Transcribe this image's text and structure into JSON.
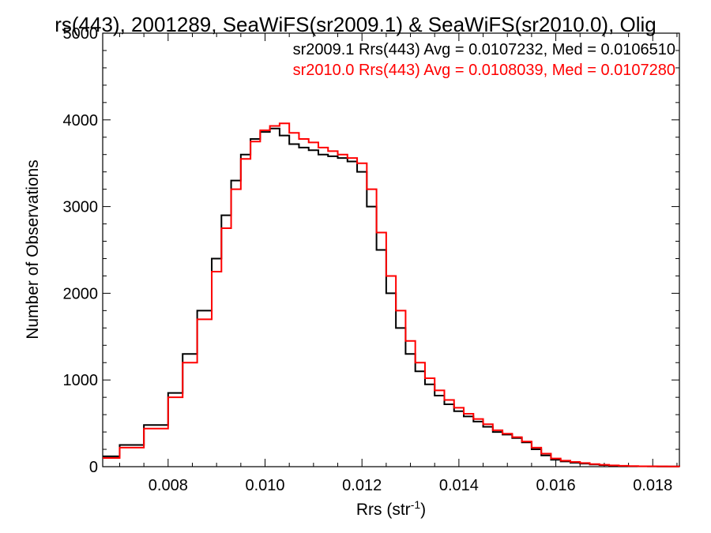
{
  "chart_data": {
    "type": "line",
    "title": "rs(443), 2001289, SeaWiFS(sr2009.1) & SeaWiFS(sr2010.0), Olig",
    "xlabel": "Rrs (str",
    "xlabel_sup": "-1",
    "xlabel_end": ")",
    "ylabel": "Number of Observations",
    "xlim": [
      0.00665,
      0.01855
    ],
    "ylim": [
      0,
      5000
    ],
    "x_ticks": [
      0.008,
      0.01,
      0.012,
      0.014,
      0.016,
      0.018
    ],
    "x_tick_labels": [
      "0.008",
      "0.010",
      "0.012",
      "0.014",
      "0.016",
      "0.018"
    ],
    "y_ticks": [
      0,
      1000,
      2000,
      3000,
      4000,
      5000
    ],
    "y_tick_labels": [
      "0",
      "1000",
      "2000",
      "3000",
      "4000",
      "5000"
    ],
    "grid": false,
    "legend_position": "top-right",
    "x": [
      0.00665,
      0.007,
      0.0075,
      0.008,
      0.0083,
      0.0086,
      0.0089,
      0.0091,
      0.0093,
      0.0095,
      0.0097,
      0.0099,
      0.0101,
      0.0103,
      0.0105,
      0.0107,
      0.0109,
      0.0111,
      0.0113,
      0.0115,
      0.0117,
      0.0119,
      0.0121,
      0.0123,
      0.0125,
      0.0127,
      0.0129,
      0.0131,
      0.0133,
      0.0135,
      0.0137,
      0.0139,
      0.0141,
      0.0143,
      0.0145,
      0.0147,
      0.0149,
      0.0151,
      0.0153,
      0.0155,
      0.0157,
      0.0159,
      0.0161,
      0.0163,
      0.0165,
      0.0167,
      0.0169,
      0.0171,
      0.0173,
      0.0175,
      0.0177,
      0.0179,
      0.0181,
      0.0183,
      0.01855
    ],
    "series": [
      {
        "name": "sr2009.1 Rrs(443) Avg = 0.0107232, Med = 0.0106510",
        "color": "#000000",
        "values": [
          120,
          250,
          480,
          850,
          1300,
          1800,
          2400,
          2900,
          3300,
          3600,
          3780,
          3860,
          3900,
          3820,
          3720,
          3680,
          3650,
          3600,
          3580,
          3560,
          3520,
          3400,
          3000,
          2500,
          2000,
          1600,
          1300,
          1100,
          950,
          820,
          720,
          640,
          580,
          520,
          460,
          400,
          370,
          330,
          280,
          200,
          130,
          80,
          60,
          45,
          35,
          25,
          18,
          12,
          8,
          5,
          4,
          3,
          2,
          2,
          1
        ]
      },
      {
        "name": "sr2010.0 Rrs(443) Avg = 0.0108039, Med = 0.0107280",
        "color": "#ff0000",
        "values": [
          100,
          220,
          440,
          800,
          1200,
          1700,
          2250,
          2750,
          3200,
          3550,
          3750,
          3880,
          3930,
          3960,
          3850,
          3780,
          3740,
          3680,
          3640,
          3600,
          3560,
          3500,
          3200,
          2700,
          2200,
          1800,
          1450,
          1200,
          1020,
          880,
          770,
          680,
          610,
          550,
          490,
          420,
          380,
          340,
          290,
          220,
          150,
          95,
          70,
          55,
          42,
          30,
          22,
          15,
          10,
          7,
          5,
          4,
          3,
          2,
          1
        ]
      }
    ]
  }
}
